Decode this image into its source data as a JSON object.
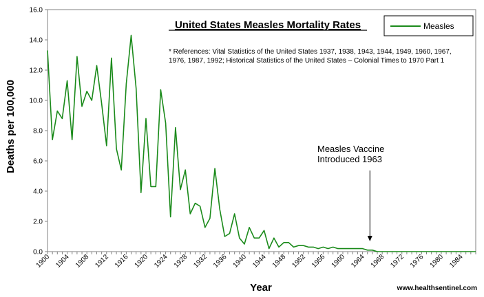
{
  "chart_data": {
    "type": "line",
    "title": "United States Measles Mortality Rates",
    "xlabel": "Year",
    "ylabel": "Deaths per 100,000",
    "ylim": [
      0,
      16
    ],
    "yticks": [
      "0.0",
      "2.0",
      "4.0",
      "6.0",
      "8.0",
      "10.0",
      "12.0",
      "14.0",
      "16.0"
    ],
    "xlim": [
      1900,
      1987
    ],
    "xticks": [
      "1900",
      "1904",
      "1908",
      "1912",
      "1916",
      "1920",
      "1924",
      "1928",
      "1932",
      "1936",
      "1940",
      "1944",
      "1948",
      "1952",
      "1956",
      "1960",
      "1964",
      "1968",
      "1972",
      "1976",
      "1980",
      "1984"
    ],
    "series": [
      {
        "name": "Measles",
        "color": "#1a8a1a",
        "x": [
          1900,
          1901,
          1902,
          1903,
          1904,
          1905,
          1906,
          1907,
          1908,
          1909,
          1910,
          1911,
          1912,
          1913,
          1914,
          1915,
          1916,
          1917,
          1918,
          1919,
          1920,
          1921,
          1922,
          1923,
          1924,
          1925,
          1926,
          1927,
          1928,
          1929,
          1930,
          1931,
          1932,
          1933,
          1934,
          1935,
          1936,
          1937,
          1938,
          1939,
          1940,
          1941,
          1942,
          1943,
          1944,
          1945,
          1946,
          1947,
          1948,
          1949,
          1950,
          1951,
          1952,
          1953,
          1954,
          1955,
          1956,
          1957,
          1958,
          1959,
          1960,
          1961,
          1962,
          1963,
          1964,
          1965,
          1966,
          1967,
          1968,
          1969,
          1970,
          1971,
          1972,
          1973,
          1974,
          1975,
          1976,
          1977,
          1978,
          1979,
          1980,
          1981,
          1982,
          1983,
          1984,
          1985,
          1986,
          1987
        ],
        "values": [
          13.3,
          7.4,
          9.3,
          8.8,
          11.3,
          7.4,
          12.9,
          9.6,
          10.6,
          10.0,
          12.3,
          9.8,
          7.0,
          12.8,
          6.8,
          5.4,
          11.1,
          14.3,
          10.8,
          3.9,
          8.8,
          4.3,
          4.3,
          10.7,
          8.5,
          2.3,
          8.2,
          4.1,
          5.4,
          2.5,
          3.2,
          3.0,
          1.6,
          2.2,
          5.5,
          2.8,
          1.0,
          1.2,
          2.5,
          0.9,
          0.5,
          1.6,
          0.9,
          0.9,
          1.4,
          0.2,
          0.9,
          0.3,
          0.6,
          0.6,
          0.3,
          0.4,
          0.4,
          0.3,
          0.3,
          0.2,
          0.3,
          0.2,
          0.3,
          0.2,
          0.2,
          0.2,
          0.2,
          0.2,
          0.2,
          0.1,
          0.1,
          0.0,
          0.0,
          0.0,
          0.0,
          0.0,
          0.0,
          0.0,
          0.0,
          0.0,
          0.0,
          0.0,
          0.0,
          0.0,
          0.0,
          0.0,
          0.0,
          0.0,
          0.0,
          0.0,
          0.0,
          0.0
        ]
      }
    ],
    "legend": {
      "entries": [
        "Measles"
      ],
      "placement": "top-right"
    },
    "annotations": {
      "references": [
        "* References: Vital Statistics of the United States 1937, 1938, 1943, 1944, 1949, 1960, 1967,",
        "1976, 1987, 1992; Historical Statistics of the United States – Colonial Times to 1970 Part 1"
      ],
      "vaccine_label": [
        "Measles Vaccine",
        "Introduced 1963"
      ],
      "vaccine_year": 1963,
      "credit": "www.healthsentinel.com"
    }
  }
}
